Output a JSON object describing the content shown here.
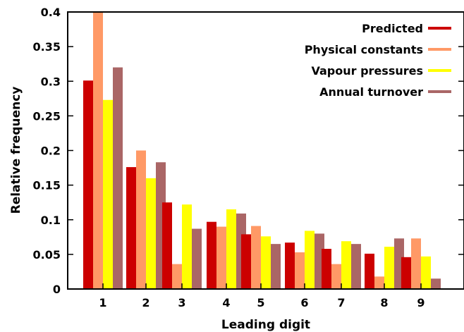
{
  "chart_data": {
    "type": "bar",
    "title": "",
    "xlabel": "Leading digit",
    "ylabel": "Relative frequency",
    "categories": [
      "1",
      "2",
      "3",
      "4",
      "5",
      "6",
      "7",
      "8",
      "9"
    ],
    "ylim": [
      0,
      0.4
    ],
    "yticks": [
      "0",
      "0.05",
      "0.1",
      "0.15",
      "0.2",
      "0.25",
      "0.3",
      "0.35",
      "0.4"
    ],
    "legend_position": "top-right",
    "grid": false,
    "series": [
      {
        "name": "Predicted",
        "color": "#cc0000",
        "values": [
          0.301,
          0.176,
          0.125,
          0.097,
          0.079,
          0.067,
          0.058,
          0.051,
          0.046
        ]
      },
      {
        "name": "Physical constants",
        "color": "#ff9966",
        "values": [
          0.41,
          0.2,
          0.036,
          0.09,
          0.091,
          0.053,
          0.036,
          0.018,
          0.073
        ]
      },
      {
        "name": "Vapour pressures",
        "color": "#ffff00",
        "values": [
          0.273,
          0.16,
          0.122,
          0.115,
          0.076,
          0.084,
          0.069,
          0.061,
          0.047
        ]
      },
      {
        "name": "Annual turnover",
        "color": "#aa6666",
        "values": [
          0.32,
          0.183,
          0.087,
          0.109,
          0.065,
          0.08,
          0.065,
          0.073,
          0.015
        ]
      }
    ]
  }
}
